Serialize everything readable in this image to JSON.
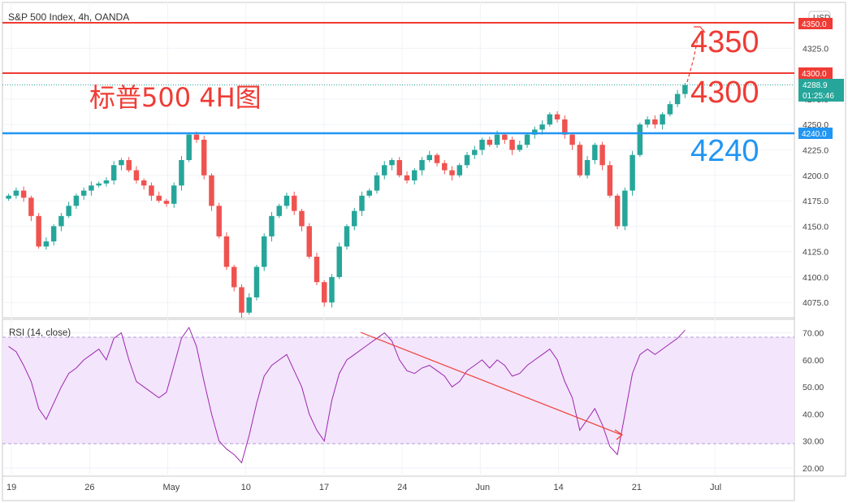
{
  "header": {
    "symbol_title": "S&P 500 Index, 4h, OANDA",
    "currency": "USD"
  },
  "annotations": {
    "cn_title": "标普500 4H图",
    "target_label": "4350",
    "resistance_label": "4300",
    "support_label": "4240"
  },
  "price_tags": {
    "top_line_value": "4350.0",
    "resistance_value": "4300.0",
    "current_value": "4288.9",
    "countdown": "01:25:46",
    "support_value": "4240.0"
  },
  "rsi_panel": {
    "label": "RSI (14, close)"
  },
  "colors": {
    "up": "#26a69a",
    "down": "#ef5350",
    "resistance_line": "#ef3b34",
    "support_line": "#2196f3",
    "rsi_line": "#9c27b0",
    "rsi_band": "#f3e5fb",
    "current_price": "#26a69a"
  },
  "chart_data": [
    {
      "type": "candlestick",
      "title": "S&P 500 Index, 4h, OANDA",
      "y_ticks": [
        "4325.0",
        "4300.0",
        "4275.0",
        "4250.0",
        "4225.0",
        "4200.0",
        "4175.0",
        "4150.0",
        "4125.0",
        "4100.0",
        "4075.0"
      ],
      "ylim": [
        4060,
        4370
      ],
      "x_ticks": [
        "19",
        "26",
        "May",
        "10",
        "17",
        "24",
        "Jun",
        "14",
        "21",
        "Jul"
      ],
      "horizontal_lines": [
        {
          "value": 4350,
          "color": "red"
        },
        {
          "value": 4300,
          "color": "red"
        },
        {
          "value": 4240,
          "color": "blue"
        }
      ],
      "close_path": [
        4180,
        4185,
        4178,
        4160,
        4130,
        4135,
        4150,
        4160,
        4170,
        4180,
        4185,
        4190,
        4192,
        4195,
        4210,
        4215,
        4205,
        4195,
        4190,
        4180,
        4175,
        4172,
        4190,
        4215,
        4240,
        4235,
        4200,
        4170,
        4140,
        4110,
        4090,
        4065,
        4080,
        4110,
        4140,
        4160,
        4170,
        4180,
        4165,
        4150,
        4120,
        4095,
        4075,
        4100,
        4130,
        4150,
        4165,
        4180,
        4185,
        4200,
        4210,
        4215,
        4200,
        4195,
        4205,
        4215,
        4220,
        4212,
        4205,
        4200,
        4210,
        4220,
        4225,
        4235,
        4230,
        4240,
        4235,
        4225,
        4230,
        4240,
        4245,
        4250,
        4260,
        4255,
        4240,
        4230,
        4200,
        4215,
        4230,
        4210,
        4180,
        4150,
        4185,
        4220,
        4250,
        4255,
        4250,
        4260,
        4270,
        4280,
        4288.9
      ],
      "projection": {
        "from": 4290,
        "to": 4350
      }
    },
    {
      "type": "line",
      "title": "RSI (14, close)",
      "y_ticks": [
        "70.00",
        "60.00",
        "50.00",
        "40.00",
        "30.00",
        "20.00"
      ],
      "ylim": [
        17,
        75
      ],
      "band": [
        30,
        70
      ],
      "values": [
        65,
        63,
        58,
        52,
        42,
        38,
        44,
        50,
        55,
        57,
        60,
        62,
        64,
        60,
        68,
        70,
        60,
        52,
        50,
        48,
        46,
        48,
        58,
        68,
        72,
        65,
        52,
        40,
        30,
        27,
        25,
        22,
        32,
        44,
        54,
        58,
        60,
        62,
        56,
        50,
        40,
        34,
        30,
        45,
        55,
        60,
        62,
        64,
        66,
        68,
        70,
        67,
        60,
        56,
        55,
        57,
        58,
        56,
        54,
        50,
        52,
        56,
        58,
        60,
        57,
        60,
        58,
        54,
        55,
        58,
        60,
        62,
        64,
        60,
        52,
        46,
        34,
        38,
        42,
        36,
        28,
        25,
        40,
        55,
        62,
        64,
        62,
        64,
        66,
        68,
        71
      ],
      "trendline": {
        "from": 70,
        "to": 33
      }
    }
  ]
}
